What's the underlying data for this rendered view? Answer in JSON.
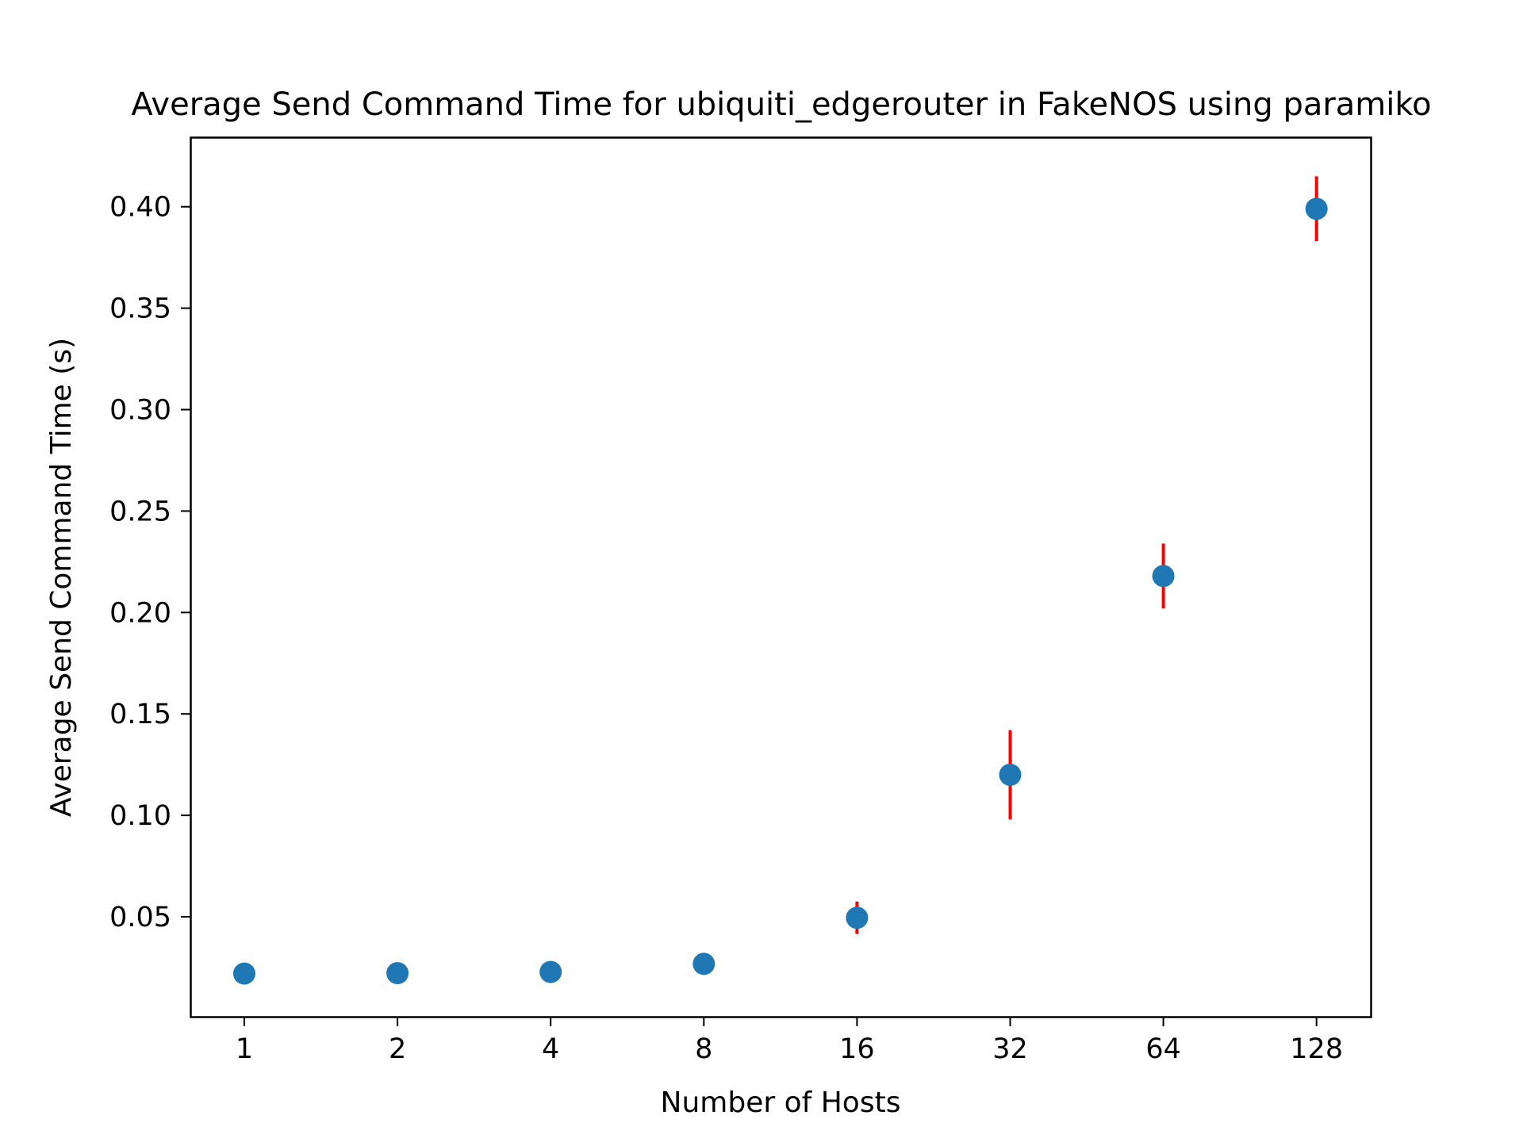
{
  "chart_data": {
    "type": "scatter",
    "title": "Average Send Command Time for ubiquiti_edgerouter in FakeNOS using paramiko",
    "xlabel": "Number of Hosts",
    "ylabel": "Average Send Command Time (s)",
    "x_scale": "log2",
    "x_ticks": [
      "1",
      "2",
      "4",
      "8",
      "16",
      "32",
      "64",
      "128"
    ],
    "y_ticks": [
      "0.05",
      "0.10",
      "0.15",
      "0.20",
      "0.25",
      "0.30",
      "0.35",
      "0.40"
    ],
    "ylim": [
      0.0,
      0.435
    ],
    "grid": false,
    "legend": "none",
    "series": [
      {
        "x": [
          1,
          2,
          4,
          8,
          16,
          32,
          64,
          128
        ],
        "y": [
          0.022,
          0.0222,
          0.0228,
          0.0268,
          0.0495,
          0.12,
          0.218,
          0.399
        ],
        "yerr": [
          0.0,
          0.0,
          0.0,
          0.0,
          0.008,
          0.022,
          0.016,
          0.016
        ],
        "marker_color": "#1f77b4",
        "errorbar_color": "#ff0000"
      }
    ]
  }
}
